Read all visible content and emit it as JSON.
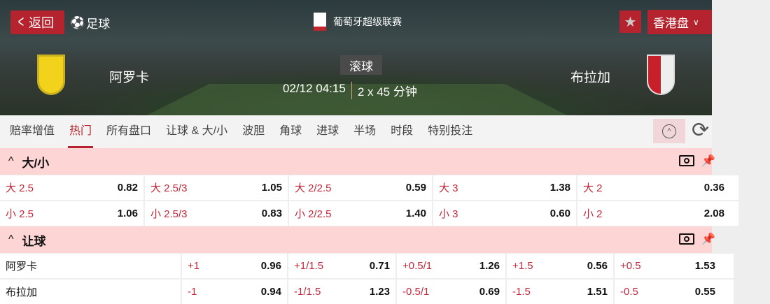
{
  "header": {
    "back_label": "返回",
    "sport": "足球",
    "league": "葡萄牙超级联赛",
    "odds_type": "香港盘",
    "status": "滚球",
    "datetime": "02/12 04:15",
    "duration": "2 x 45 分钟",
    "home": "阿罗卡",
    "away": "布拉加"
  },
  "tabs": [
    "赔率增值",
    "热门",
    "所有盘口",
    "让球 & 大/小",
    "波胆",
    "角球",
    "进球",
    "半场",
    "时段",
    "特别投注"
  ],
  "active_tab": "热门",
  "over_under": {
    "title": "大/小",
    "rows": [
      [
        {
          "l": "大 2.5",
          "v": "0.82"
        },
        {
          "l": "大 2.5/3",
          "v": "1.05"
        },
        {
          "l": "大 2/2.5",
          "v": "0.59"
        },
        {
          "l": "大 3",
          "v": "1.38"
        },
        {
          "l": "大 2",
          "v": "0.36"
        }
      ],
      [
        {
          "l": "小 2.5",
          "v": "1.06"
        },
        {
          "l": "小 2.5/3",
          "v": "0.83"
        },
        {
          "l": "小 2/2.5",
          "v": "1.40"
        },
        {
          "l": "小 3",
          "v": "0.60"
        },
        {
          "l": "小 2",
          "v": "2.08"
        }
      ]
    ]
  },
  "handicap": {
    "title": "让球",
    "rows": [
      {
        "team": "阿罗卡",
        "cells": [
          {
            "l": "+1",
            "v": "0.96"
          },
          {
            "l": "+1/1.5",
            "v": "0.71"
          },
          {
            "l": "+0.5/1",
            "v": "1.26"
          },
          {
            "l": "+1.5",
            "v": "0.56"
          },
          {
            "l": "+0.5",
            "v": "1.53"
          }
        ]
      },
      {
        "team": "布拉加",
        "cells": [
          {
            "l": "-1",
            "v": "0.94"
          },
          {
            "l": "-1/1.5",
            "v": "1.23"
          },
          {
            "l": "-0.5/1",
            "v": "0.69"
          },
          {
            "l": "-1.5",
            "v": "1.51"
          },
          {
            "l": "-0.5",
            "v": "0.55"
          }
        ]
      }
    ]
  },
  "colors": {
    "accent": "#b5232e",
    "section_bg": "#fdd5d5",
    "line_label": "#c0283a"
  }
}
